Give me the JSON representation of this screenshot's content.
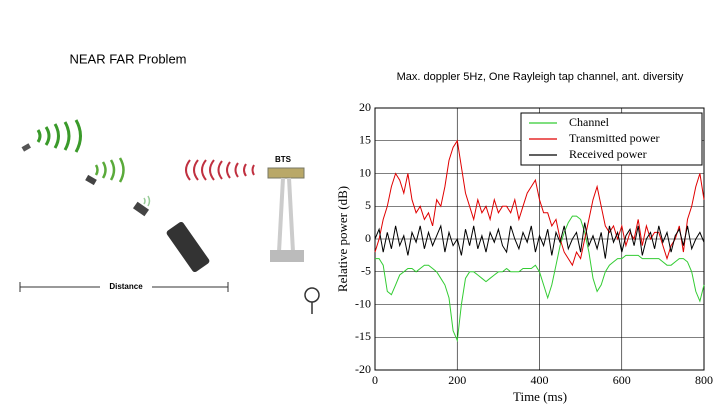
{
  "diagram": {
    "title": "NEAR FAR Problem",
    "station_label": "BTS",
    "distance_label": "Distance"
  },
  "chart_data": {
    "type": "line",
    "title": "Max. doppler 5Hz, One Rayleigh tap channel, ant. diversity",
    "x_label": "Time (ms)",
    "y_label": "Relative power (dB)",
    "xlim": [
      0,
      800
    ],
    "ylim": [
      -20,
      20
    ],
    "xticks": [
      0,
      200,
      400,
      600,
      800
    ],
    "yticks": [
      -20,
      -15,
      -10,
      -5,
      0,
      5,
      10,
      15,
      20
    ],
    "grid": true,
    "legend": "upper right",
    "x": [
      0,
      10,
      20,
      30,
      40,
      50,
      60,
      70,
      80,
      90,
      100,
      110,
      120,
      130,
      140,
      150,
      160,
      170,
      180,
      190,
      200,
      210,
      220,
      230,
      240,
      250,
      260,
      270,
      280,
      290,
      300,
      310,
      320,
      330,
      340,
      350,
      360,
      370,
      380,
      390,
      400,
      410,
      420,
      430,
      440,
      450,
      460,
      470,
      480,
      490,
      500,
      510,
      520,
      530,
      540,
      550,
      560,
      570,
      580,
      590,
      600,
      610,
      620,
      630,
      640,
      650,
      660,
      670,
      680,
      690,
      700,
      710,
      720,
      730,
      740,
      750,
      760,
      770,
      780,
      790,
      800
    ],
    "series": [
      {
        "name": "Channel",
        "color": "#33cc33",
        "values": [
          -3,
          -3,
          -4,
          -8,
          -8.5,
          -7,
          -5.5,
          -5,
          -4.5,
          -4.5,
          -5,
          -4.5,
          -4,
          -4,
          -4.5,
          -5,
          -6,
          -7,
          -9,
          -14,
          -15.5,
          -10,
          -6,
          -5,
          -5,
          -5.5,
          -6,
          -6.5,
          -6,
          -5.5,
          -5,
          -5,
          -4.5,
          -5,
          -5,
          -5,
          -4.5,
          -4.5,
          -4.5,
          -4,
          -5,
          -7,
          -9,
          -7,
          -4,
          -1,
          1,
          2.5,
          3.5,
          3.5,
          3,
          1,
          -2,
          -6,
          -8,
          -7,
          -5,
          -4,
          -3.5,
          -3,
          -3,
          -2.5,
          -2.5,
          -2.5,
          -2.5,
          -3,
          -3,
          -3,
          -3,
          -3,
          -3.5,
          -4,
          -4,
          -3.5,
          -3,
          -3,
          -3.5,
          -5,
          -8,
          -9.5,
          -7
        ]
      },
      {
        "name": "Transmitted power",
        "color": "#e00000",
        "values": [
          -2,
          0,
          3,
          5,
          8,
          10,
          9,
          7,
          10,
          6,
          4,
          5,
          3,
          4,
          2,
          6,
          5,
          8,
          12,
          14,
          15,
          11,
          7,
          5,
          3,
          6,
          4,
          5,
          3,
          6,
          4,
          5,
          5,
          4,
          6,
          3,
          5,
          7,
          8,
          9,
          6,
          4,
          4,
          2,
          3,
          0,
          -2,
          -3,
          -4,
          -2,
          -3,
          0,
          3,
          6,
          8,
          5,
          2,
          1,
          2,
          0,
          2,
          -1,
          1,
          0,
          3,
          -1,
          2,
          0,
          1,
          1,
          -1,
          -3,
          -1,
          0,
          2,
          -2,
          3,
          5,
          8,
          10,
          6
        ]
      },
      {
        "name": "Received power",
        "color": "#000000",
        "values": [
          0,
          1.5,
          -2,
          1,
          -1.5,
          2,
          -1,
          0.5,
          -2.5,
          1,
          -0.5,
          2,
          -1.5,
          1,
          -1,
          0.5,
          2,
          -2,
          1,
          -1,
          0,
          -2.5,
          1.5,
          -1,
          2,
          -1.5,
          0.5,
          -2,
          1,
          -0.5,
          1.5,
          -1,
          -2,
          2,
          0,
          -1.5,
          1,
          -0.5,
          2,
          -2,
          0.5,
          -1,
          1.5,
          -2.5,
          1,
          -0.5,
          2,
          -1.5,
          0,
          1,
          -2,
          2.5,
          -1,
          0.5,
          -1.5,
          1,
          -3,
          2,
          -0.5,
          1,
          -2,
          0.5,
          1.5,
          -1,
          2,
          -2.5,
          0,
          1,
          -1.5,
          2,
          -0.5,
          1,
          -2,
          0.5,
          1.5,
          -1,
          2,
          -1.5,
          0,
          1,
          -0.5
        ]
      }
    ]
  }
}
